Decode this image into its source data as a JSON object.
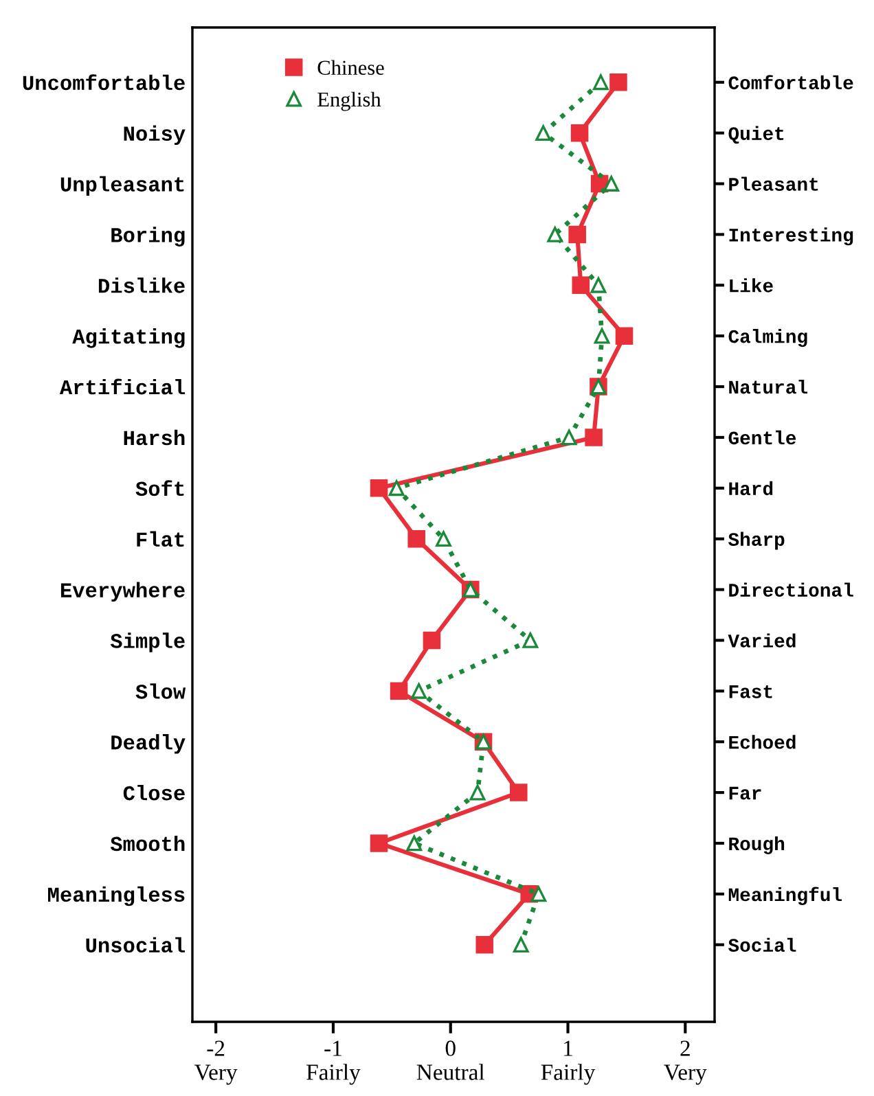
{
  "chart_data": {
    "type": "line",
    "orientation": "horizontal",
    "categories": [
      "Uncomfortable",
      "Noisy",
      "Unpleasant",
      "Boring",
      "Dislike",
      "Agitating",
      "Artificial",
      "Harsh",
      "Soft",
      "Flat",
      "Everywhere",
      "Simple",
      "Slow",
      "Deadly",
      "Close",
      "Smooth",
      "Meaningless",
      "Unsocial"
    ],
    "y2_categories": [
      "Comfortable",
      "Quiet",
      "Pleasant",
      "Interesting",
      "Like",
      "Calming",
      "Natural",
      "Gentle",
      "Hard",
      "Sharp",
      "Directional",
      "Varied",
      "Fast",
      "Echoed",
      "Far",
      "Rough",
      "Meaningful",
      "Social"
    ],
    "series": [
      {
        "name": "Chinese",
        "color": "#e8303a",
        "marker": "square",
        "line_style": "solid",
        "values": [
          1.43,
          1.1,
          1.27,
          1.08,
          1.11,
          1.48,
          1.26,
          1.22,
          -0.61,
          -0.29,
          0.17,
          -0.16,
          -0.44,
          0.28,
          0.58,
          -0.61,
          0.67,
          0.29
        ]
      },
      {
        "name": "English",
        "color": "#1a8a3a",
        "marker": "triangle",
        "line_style": "dotted",
        "values": [
          1.28,
          0.79,
          1.37,
          0.89,
          1.26,
          1.29,
          1.26,
          1.01,
          -0.46,
          -0.06,
          0.17,
          0.68,
          -0.27,
          0.28,
          0.23,
          -0.31,
          0.75,
          0.6
        ]
      }
    ],
    "xlim": [
      -2.2,
      2.25
    ],
    "xticks": [
      {
        "value": -2,
        "label": "-2\nVery"
      },
      {
        "value": -1,
        "label": "-1\nFairly"
      },
      {
        "value": 0,
        "label": "0\nNeutral"
      },
      {
        "value": 1,
        "label": "1\nFairly"
      },
      {
        "value": 2,
        "label": "2\nVery"
      }
    ],
    "legend": "top left",
    "grid": false
  }
}
